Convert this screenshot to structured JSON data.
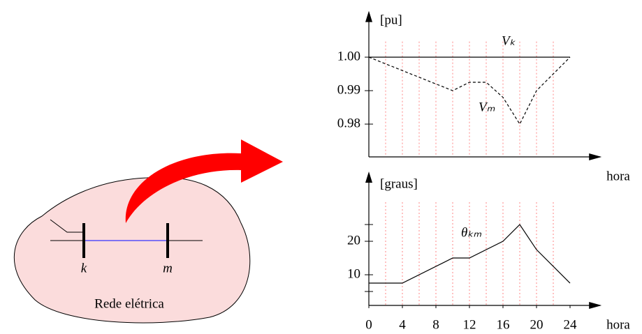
{
  "diagram": {
    "network_label": "Rede elétrica",
    "bus_k": "k",
    "bus_m": "m"
  },
  "chart_data": [
    {
      "type": "line",
      "y_label": "[pu]",
      "x_label": "hora",
      "xlim": [
        0,
        27.6
      ],
      "ylim": [
        0.97,
        1.013
      ],
      "yticks": [
        {
          "value": 0.98,
          "label": "0.98"
        },
        {
          "value": 0.99,
          "label": "0.99"
        },
        {
          "value": 1.0,
          "label": "1.00"
        }
      ],
      "minor_xticks": [
        2,
        4,
        6,
        8,
        10,
        12,
        14,
        16,
        18,
        20,
        22
      ],
      "series": [
        {
          "name": "Vₖ",
          "color": "#000000",
          "dashed": false,
          "x": [
            0,
            24
          ],
          "values": [
            1.0,
            1.0
          ]
        },
        {
          "name": "Vₘ",
          "color": "#000000",
          "dashed": true,
          "x": [
            0,
            10,
            12,
            14,
            16,
            18,
            20,
            24
          ],
          "values": [
            1.0,
            0.99,
            0.9925,
            0.9925,
            0.988,
            0.98,
            0.99,
            1.0
          ]
        }
      ]
    },
    {
      "type": "line",
      "y_label": "[graus]",
      "x_label": "hora",
      "xlim": [
        0,
        27.6
      ],
      "ylim": [
        0.8,
        40
      ],
      "xticks": [
        0,
        4,
        8,
        12,
        16,
        20,
        24
      ],
      "yticks": [
        10,
        20
      ],
      "minor_yticks": [
        5,
        25
      ],
      "minor_xticks": [
        2,
        4,
        6,
        8,
        10,
        12,
        14,
        16,
        18,
        20,
        22
      ],
      "series": [
        {
          "name": "θₖₘ",
          "color": "#000000",
          "dashed": false,
          "x": [
            0,
            4,
            10,
            12,
            16,
            18,
            20,
            24
          ],
          "values": [
            7.5,
            7.5,
            15,
            15,
            20,
            25,
            17.5,
            7.5
          ]
        }
      ]
    }
  ]
}
